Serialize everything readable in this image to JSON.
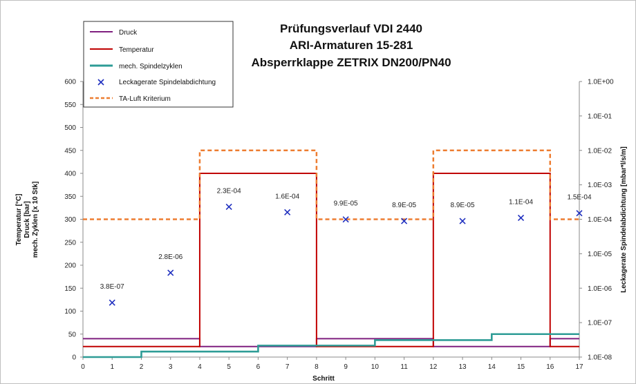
{
  "chart_data": {
    "type": "line",
    "title": [
      "Prüfungsverlauf VDI 2440",
      "ARI-Armaturen 15-281",
      "Absperrklappe ZETRIX DN200/PN40"
    ],
    "xlabel": "Schritt",
    "ylabel": [
      "Temperatur [°C]",
      "Druck [bar]",
      "mech. Zyklen [x 10 Stk]"
    ],
    "y2label": "Leckagerate Spindelabdichtung [mbar*l/s/m]",
    "xlim": [
      0,
      17
    ],
    "ylim": [
      0,
      600
    ],
    "y2lim_log": [
      1e-08,
      1
    ],
    "x_ticks": [
      "0",
      "1",
      "2",
      "3",
      "4",
      "5",
      "6",
      "7",
      "8",
      "9",
      "10",
      "11",
      "12",
      "13",
      "14",
      "15",
      "16",
      "17"
    ],
    "y_ticks": [
      "0",
      "50",
      "100",
      "150",
      "200",
      "250",
      "300",
      "350",
      "400",
      "450",
      "500",
      "550",
      "600"
    ],
    "y2_ticks": [
      "1.0E-08",
      "1.0E-07",
      "1.0E-06",
      "1.0E-05",
      "1.0E-04",
      "1.0E-03",
      "1.0E-02",
      "1.0E-01",
      "1.0E+00"
    ],
    "grid": false,
    "legend_position": "top-left",
    "series": [
      {
        "name": "Druck",
        "color": "#7f1f7f",
        "style": "step",
        "x": [
          0,
          4,
          4,
          8,
          8,
          12,
          12,
          16,
          16,
          17
        ],
        "y": [
          40,
          40,
          23,
          23,
          40,
          40,
          23,
          23,
          40,
          40
        ]
      },
      {
        "name": "Temperatur",
        "color": "#c00000",
        "style": "step",
        "x": [
          0,
          4,
          4,
          8,
          8,
          12,
          12,
          16,
          16,
          17
        ],
        "y": [
          23,
          23,
          400,
          400,
          23,
          23,
          400,
          400,
          23,
          23
        ]
      },
      {
        "name": "mech. Spindelzyklen",
        "color": "#2e9c96",
        "style": "step",
        "x": [
          0,
          2,
          2,
          6,
          6,
          10,
          10,
          14,
          14,
          17
        ],
        "y": [
          0,
          0,
          12,
          12,
          25,
          25,
          37,
          37,
          50,
          50
        ]
      },
      {
        "name": "Leckagerate Spindelabdichtung",
        "color": "#1f2fbf",
        "style": "marker-x",
        "axis": "right",
        "x": [
          1,
          3,
          5,
          7,
          9,
          11,
          13,
          15,
          17
        ],
        "y": [
          3.8e-07,
          2.8e-06,
          0.00023,
          0.00016,
          9.9e-05,
          8.9e-05,
          8.9e-05,
          0.00011,
          0.00015
        ],
        "labels": [
          "3.8E-07",
          "2.8E-06",
          "2.3E-04",
          "1.6E-04",
          "9.9E-05",
          "8.9E-05",
          "8.9E-05",
          "1.1E-04",
          "1.5E-04"
        ]
      },
      {
        "name": "TA-Luft Kriterium",
        "color": "#ed7d31",
        "style": "dashed-step",
        "axis": "right",
        "x": [
          0,
          4,
          4,
          8,
          8,
          12,
          12,
          16,
          16,
          17
        ],
        "y": [
          0.0001,
          0.0001,
          0.01,
          0.01,
          0.0001,
          0.0001,
          0.01,
          0.01,
          0.0001,
          0.0001
        ]
      }
    ]
  }
}
